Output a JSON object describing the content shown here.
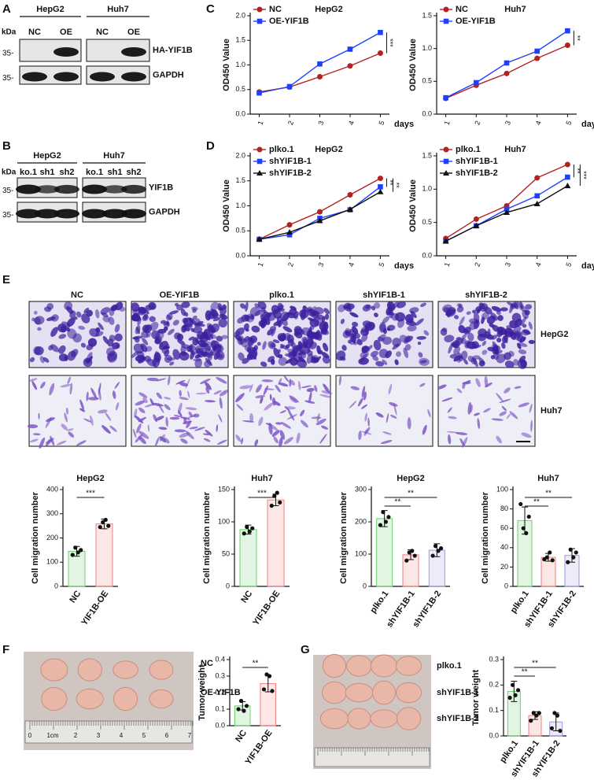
{
  "panel_labels": [
    "A",
    "B",
    "C",
    "D",
    "E",
    "F",
    "G"
  ],
  "blots": [
    {
      "kda": "kDa",
      "cell_lines": [
        "HepG2",
        "Huh7"
      ],
      "lanes": [
        [
          "NC",
          "OE"
        ],
        [
          "NC",
          "OE"
        ]
      ],
      "markers": [
        "35-",
        "35-"
      ],
      "proteins": [
        "HA-YIF1B",
        "GAPDH"
      ]
    },
    {
      "kda": "kDa",
      "cell_lines": [
        "HepG2",
        "Huh7"
      ],
      "lanes": [
        [
          "ko.1",
          "sh1",
          "sh2"
        ],
        [
          "ko.1",
          "sh1",
          "sh2"
        ]
      ],
      "markers": [
        "35-",
        "35-"
      ],
      "proteins": [
        "YIF1B",
        "GAPDH"
      ]
    }
  ],
  "migration_images": {
    "columns": [
      "NC",
      "OE-YIF1B",
      "plko.1",
      "shYIF1B-1",
      "shYIF1B-2"
    ],
    "rows": [
      "HepG2",
      "Huh7"
    ]
  },
  "tumor_photos": [
    {
      "rows": [
        "NC",
        "OE-YIF1B"
      ],
      "ruler": [
        "0",
        "1cm",
        "2",
        "3",
        "4",
        "5",
        "6",
        "7"
      ]
    },
    {
      "rows": [
        "plko.1",
        "shYIF1B-1",
        "shYIF1B-2"
      ]
    }
  ],
  "chart_data": [
    {
      "type": "line",
      "title": "HepG2",
      "x": [
        1,
        2,
        3,
        4,
        5
      ],
      "xlabel": "days",
      "ylabel": "OD450 Value",
      "series": [
        {
          "name": "NC",
          "color": "#b22222",
          "values": [
            0.45,
            0.55,
            0.76,
            0.98,
            1.24
          ]
        },
        {
          "name": "OE-YIF1B",
          "color": "#1f3fff",
          "values": [
            0.43,
            0.56,
            1.02,
            1.32,
            1.66
          ]
        }
      ],
      "xlim": [
        0.7,
        5.3
      ],
      "xticks": [
        1,
        2,
        3,
        4,
        5
      ],
      "ylim": [
        0,
        2
      ],
      "yticks": [
        {
          "value": 0,
          "label": "0.0"
        },
        0.5,
        {
          "value": 1,
          "label": "1.0"
        },
        1.5,
        {
          "value": 2,
          "label": "2.0"
        }
      ],
      "annotations": [
        "***"
      ]
    },
    {
      "type": "line",
      "title": "Huh7",
      "x": [
        1,
        2,
        3,
        4,
        5
      ],
      "xlabel": "days",
      "ylabel": "OD450 Value",
      "series": [
        {
          "name": "NC",
          "color": "#b22222",
          "values": [
            0.24,
            0.44,
            0.62,
            0.85,
            1.05
          ]
        },
        {
          "name": "OE-YIF1B",
          "color": "#1f3fff",
          "values": [
            0.25,
            0.48,
            0.78,
            0.96,
            1.27
          ]
        }
      ],
      "xlim": [
        0.7,
        5.3
      ],
      "xticks": [
        1,
        2,
        3,
        4,
        5
      ],
      "ylim": [
        0,
        1.5
      ],
      "yticks": [
        {
          "value": 0,
          "label": "0.0"
        },
        0.5,
        {
          "value": 1,
          "label": "1.0"
        },
        1.5
      ],
      "annotations": [
        "**"
      ]
    },
    {
      "type": "line",
      "title": "HepG2",
      "x": [
        1,
        2,
        3,
        4,
        5
      ],
      "xlabel": "days",
      "ylabel": "OD450 Value",
      "series": [
        {
          "name": "plko.1",
          "color": "#b22222",
          "values": [
            0.33,
            0.62,
            0.88,
            1.22,
            1.55
          ]
        },
        {
          "name": "shYIF1B-1",
          "color": "#1f3fff",
          "values": [
            0.33,
            0.42,
            0.75,
            0.92,
            1.38
          ]
        },
        {
          "name": "shYIF1B-2",
          "color": "#111111",
          "values": [
            0.33,
            0.47,
            0.7,
            0.93,
            1.28
          ]
        }
      ],
      "xlim": [
        0.7,
        5.3
      ],
      "xticks": [
        1,
        2,
        3,
        4,
        5
      ],
      "ylim": [
        0,
        2
      ],
      "yticks": [
        {
          "value": 0,
          "label": "0.0"
        },
        0.5,
        {
          "value": 1,
          "label": "1.0"
        },
        1.5,
        {
          "value": 2,
          "label": "2.0"
        }
      ],
      "annotations": [
        "**",
        "**"
      ]
    },
    {
      "type": "line",
      "title": "Huh7",
      "x": [
        1,
        2,
        3,
        4,
        5
      ],
      "xlabel": "days",
      "ylabel": "OD450 Value",
      "series": [
        {
          "name": "plko.1",
          "color": "#b22222",
          "values": [
            0.26,
            0.55,
            0.75,
            1.17,
            1.37
          ]
        },
        {
          "name": "shYIF1B-1",
          "color": "#1f3fff",
          "values": [
            0.22,
            0.45,
            0.7,
            0.9,
            1.18
          ]
        },
        {
          "name": "shYIF1B-2",
          "color": "#111111",
          "values": [
            0.22,
            0.45,
            0.65,
            0.78,
            1.05
          ]
        }
      ],
      "xlim": [
        0.7,
        5.3
      ],
      "xticks": [
        1,
        2,
        3,
        4,
        5
      ],
      "ylim": [
        0,
        1.5
      ],
      "yticks": [
        {
          "value": 0,
          "label": "0.0"
        },
        0.5,
        {
          "value": 1,
          "label": "1.0"
        },
        1.5
      ],
      "annotations": [
        "**",
        "***"
      ]
    },
    {
      "type": "bar",
      "title": "HepG2",
      "ylabel": "Cell migration number",
      "categories": [
        "NC",
        "YIF1B-OE"
      ],
      "values": [
        145,
        258
      ],
      "errors": [
        20,
        20
      ],
      "points": [
        [
          130,
          160,
          140,
          150
        ],
        [
          245,
          265,
          275,
          250
        ]
      ],
      "colors": [
        "#6fcf6f",
        "#f08080"
      ],
      "ylim": [
        0,
        400
      ],
      "yticks": [
        0,
        100,
        200,
        300,
        400
      ],
      "annotations": [
        "***"
      ]
    },
    {
      "type": "bar",
      "title": "Huh7",
      "ylabel": "Cell migration number",
      "categories": [
        "NC",
        "YIF1B-OE"
      ],
      "values": [
        88,
        134
      ],
      "errors": [
        7,
        9
      ],
      "points": [
        [
          82,
          92,
          85,
          90
        ],
        [
          125,
          140,
          145,
          130
        ]
      ],
      "colors": [
        "#6fcf6f",
        "#f08080"
      ],
      "ylim": [
        0,
        150
      ],
      "yticks": [
        0,
        50,
        100,
        150
      ],
      "annotations": [
        "***"
      ]
    },
    {
      "type": "bar",
      "title": "HepG2",
      "ylabel": "Cell migration number",
      "categories": [
        "plko.1",
        "shYIF1B-1",
        "shYIF1B-2"
      ],
      "values": [
        210,
        98,
        112
      ],
      "errors": [
        25,
        15,
        20
      ],
      "points": [
        [
          190,
          230,
          200,
          215
        ],
        [
          80,
          105,
          110,
          95
        ],
        [
          95,
          125,
          110,
          118
        ]
      ],
      "colors": [
        "#6fcf6f",
        "#f08080",
        "#9a9ae0"
      ],
      "ylim": [
        0,
        300
      ],
      "yticks": [
        0,
        100,
        200,
        300
      ],
      "annotations": [
        "**",
        "**"
      ]
    },
    {
      "type": "bar",
      "title": "Huh7",
      "ylabel": "Cell migration number",
      "categories": [
        "plko.1",
        "shYIF1B-1",
        "shYIF1B-2"
      ],
      "values": [
        68,
        30,
        32
      ],
      "errors": [
        14,
        4,
        7
      ],
      "points": [
        [
          85,
          60,
          55,
          72
        ],
        [
          28,
          30,
          35,
          27
        ],
        [
          25,
          38,
          30,
          35
        ]
      ],
      "colors": [
        "#6fcf6f",
        "#f08080",
        "#9a9ae0"
      ],
      "ylim": [
        0,
        100
      ],
      "yticks": [
        0,
        20,
        40,
        60,
        80,
        100
      ],
      "annotations": [
        "**",
        "**"
      ]
    },
    {
      "type": "bar",
      "ylabel": "Tumor weight",
      "categories": [
        "NC",
        "YIF1B-OE"
      ],
      "values": [
        0.12,
        0.255
      ],
      "errors": [
        0.025,
        0.05
      ],
      "points": [
        [
          0.1,
          0.15,
          0.09,
          0.12
        ],
        [
          0.22,
          0.31,
          0.3,
          0.21
        ]
      ],
      "colors": [
        "#6fcf6f",
        "#f08080"
      ],
      "ylim": [
        0,
        0.4
      ],
      "yticks": [
        {
          "value": 0,
          "label": "0.0"
        },
        0.1,
        0.2,
        0.3,
        0.4
      ],
      "annotations": [
        "**"
      ]
    },
    {
      "type": "bar",
      "ylabel": "Tumor weight",
      "categories": [
        "plko.1",
        "shYIF1B-1",
        "shYIF1B-2"
      ],
      "values": [
        0.175,
        0.08,
        0.055
      ],
      "errors": [
        0.04,
        0.015,
        0.035
      ],
      "points": [
        [
          0.15,
          0.2,
          0.16,
          0.18
        ],
        [
          0.06,
          0.09,
          0.08,
          0.09
        ],
        [
          0.03,
          0.09,
          0.08,
          0.02
        ]
      ],
      "colors": [
        "#6fcf6f",
        "#f08080",
        "#9a9ae0"
      ],
      "ylim": [
        0,
        0.3
      ],
      "yticks": [
        {
          "value": 0,
          "label": "0.0"
        },
        0.1,
        0.2,
        0.3
      ],
      "annotations": [
        "**",
        "**"
      ]
    }
  ]
}
